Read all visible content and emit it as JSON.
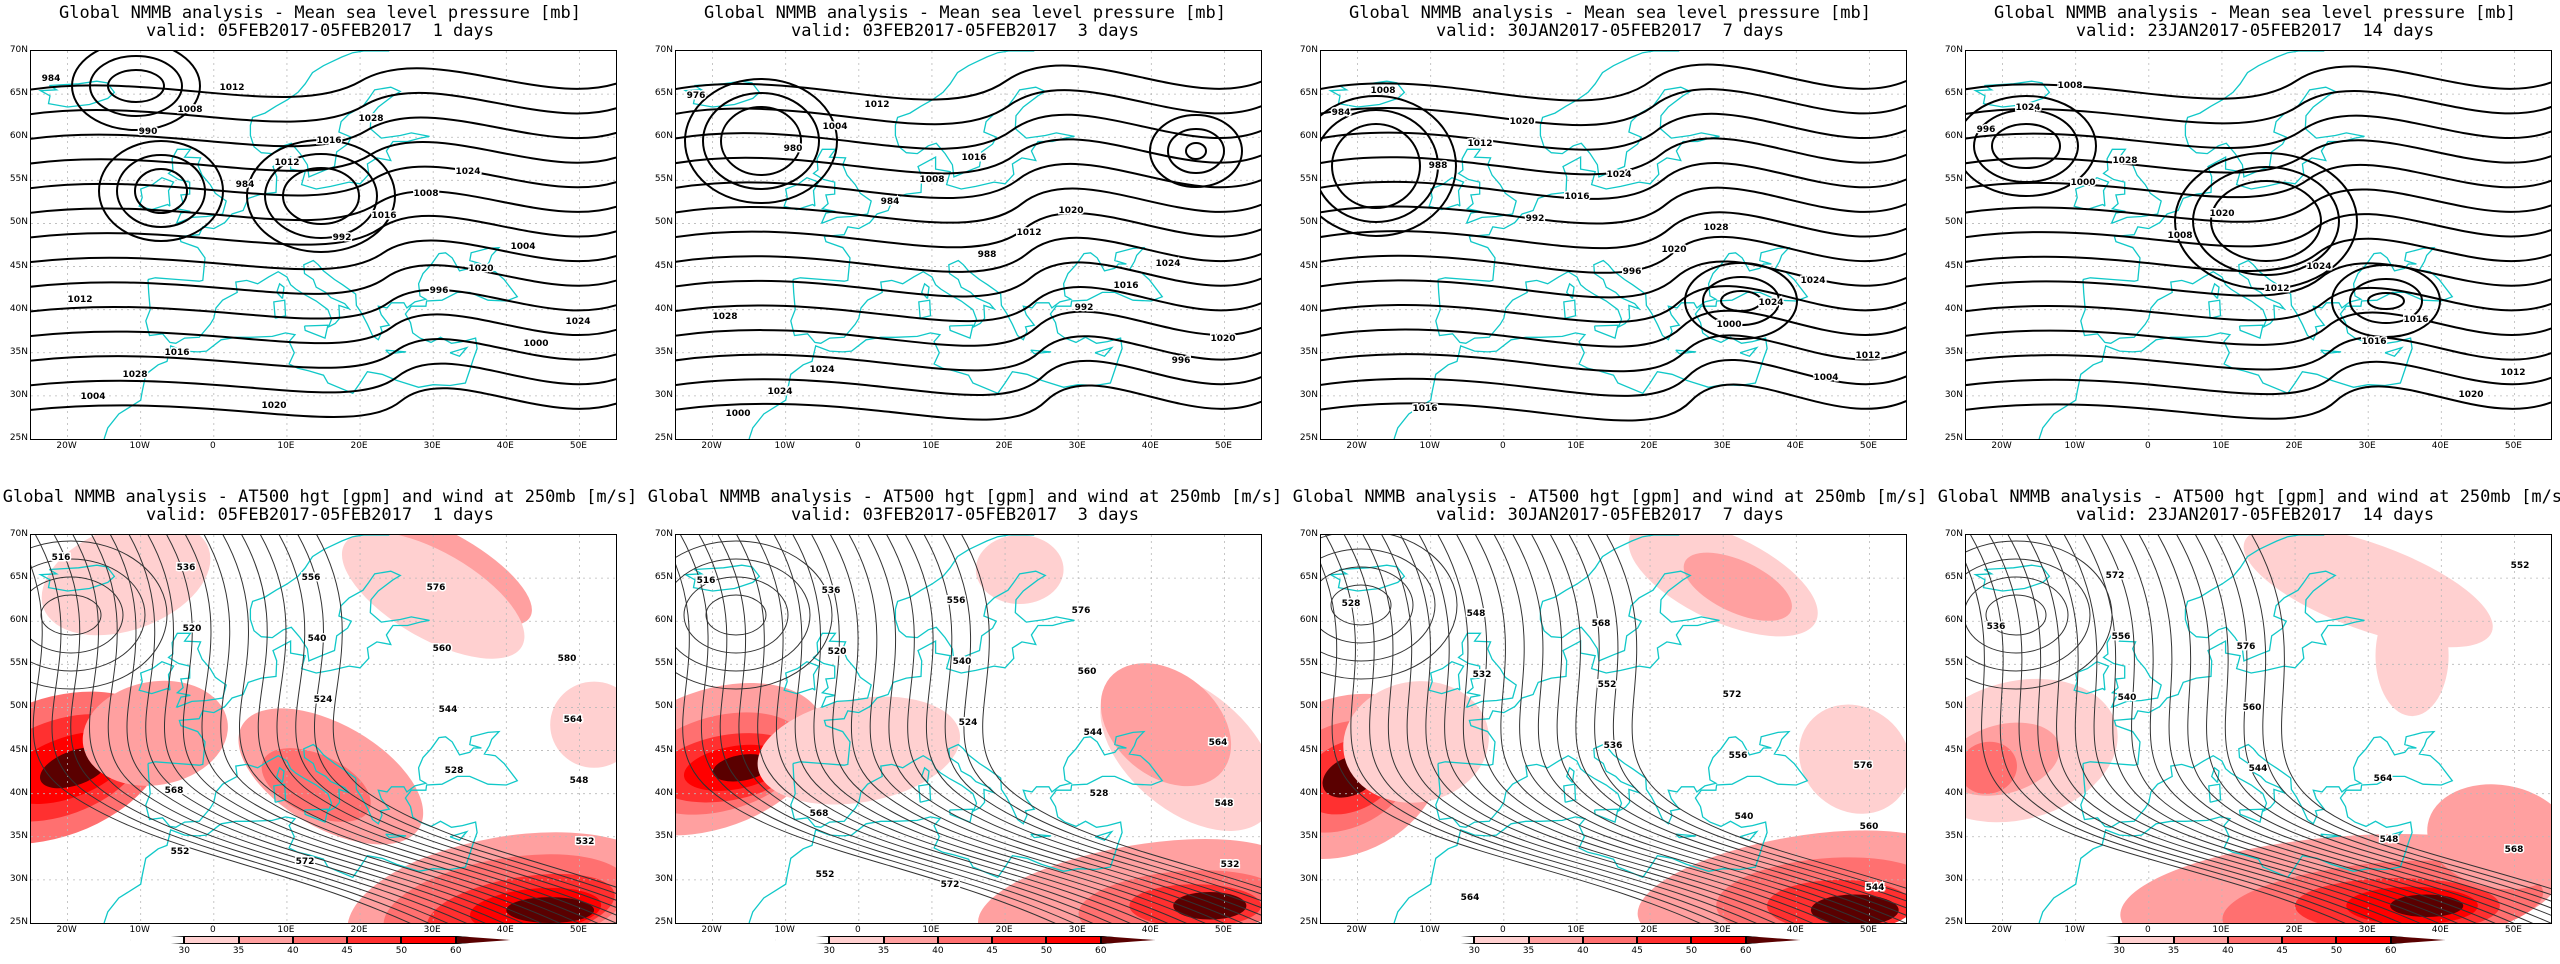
{
  "colors": {
    "coast": "#10c8c8",
    "contour": "#000000",
    "grid": "#b8b8b8",
    "wind_levels": [
      "#ffffff",
      "#ffd0d0",
      "#ffa0a0",
      "#ff7070",
      "#ff3030",
      "#ff0000",
      "#5a0000"
    ]
  },
  "axes": {
    "lat_labels": [
      "70N",
      "65N",
      "60N",
      "55N",
      "50N",
      "45N",
      "40N",
      "35N",
      "30N",
      "25N"
    ],
    "lon_labels": [
      "20W",
      "10W",
      "0",
      "10E",
      "20E",
      "30E",
      "40E",
      "50E"
    ]
  },
  "colorbar": {
    "ticks": [
      "30",
      "35",
      "40",
      "45",
      "50",
      "60"
    ]
  },
  "mslp_panels": [
    {
      "title": "Global NMMB analysis - Mean sea level pressure [mb]",
      "subtitle": "valid: 05FEB2017-05FEB2017  1 days",
      "contour_labels": [
        "984",
        "990",
        "984",
        "992",
        "996",
        "1000",
        "1004",
        "1008",
        "1012",
        "1016",
        "1020",
        "1024",
        "1028",
        "1012",
        "1016",
        "1008",
        "1004",
        "1012",
        "1016",
        "1020",
        "1028",
        "1024"
      ]
    },
    {
      "title": "Global NMMB analysis - Mean sea level pressure [mb]",
      "subtitle": "valid: 03FEB2017-05FEB2017  3 days",
      "contour_labels": [
        "976",
        "980",
        "984",
        "988",
        "992",
        "996",
        "1000",
        "1004",
        "1008",
        "1012",
        "1016",
        "1020",
        "1024",
        "1012",
        "1016",
        "1020",
        "1024",
        "1028",
        "1024"
      ]
    },
    {
      "title": "Global NMMB analysis - Mean sea level pressure [mb]",
      "subtitle": "valid: 30JAN2017-05FEB2017  7 days",
      "contour_labels": [
        "984",
        "988",
        "992",
        "996",
        "1000",
        "1004",
        "1008",
        "1012",
        "1016",
        "1020",
        "1024",
        "1012",
        "1016",
        "1020",
        "1024",
        "1028",
        "1024"
      ]
    },
    {
      "title": "Global NMMB analysis - Mean sea level pressure [mb]",
      "subtitle": "valid: 23JAN2017-05FEB2017  14 days",
      "contour_labels": [
        "996",
        "1000",
        "1008",
        "1012",
        "1016",
        "1020",
        "1024",
        "1028",
        "1020",
        "1024",
        "1016",
        "1012",
        "1008"
      ]
    }
  ],
  "z500_panels": [
    {
      "title": "Global NMMB analysis - AT500 hgt [gpm] and wind at 250mb [m/s]",
      "subtitle": "valid: 05FEB2017-05FEB2017  1 days",
      "contour_labels": [
        "516",
        "520",
        "524",
        "528",
        "532",
        "536",
        "540",
        "544",
        "548",
        "552",
        "556",
        "560",
        "564",
        "568",
        "572",
        "576",
        "580"
      ]
    },
    {
      "title": "Global NMMB analysis - AT500 hgt [gpm] and wind at 250mb [m/s]",
      "subtitle": "valid: 03FEB2017-05FEB2017  3 days",
      "contour_labels": [
        "516",
        "520",
        "524",
        "528",
        "532",
        "536",
        "540",
        "544",
        "548",
        "552",
        "556",
        "560",
        "564",
        "568",
        "572",
        "576"
      ]
    },
    {
      "title": "Global NMMB analysis - AT500 hgt [gpm] and wind at 250mb [m/s]",
      "subtitle": "valid: 30JAN2017-05FEB2017  7 days",
      "contour_labels": [
        "528",
        "532",
        "536",
        "540",
        "544",
        "548",
        "552",
        "556",
        "560",
        "564",
        "568",
        "572",
        "576"
      ]
    },
    {
      "title": "Global NMMB analysis - AT500 hgt [gpm] and wind at 250mb [m/s]",
      "subtitle": "valid: 23JAN2017-05FEB2017  14 days",
      "contour_labels": [
        "536",
        "540",
        "544",
        "548",
        "552",
        "556",
        "560",
        "564",
        "568",
        "572",
        "576"
      ]
    }
  ]
}
